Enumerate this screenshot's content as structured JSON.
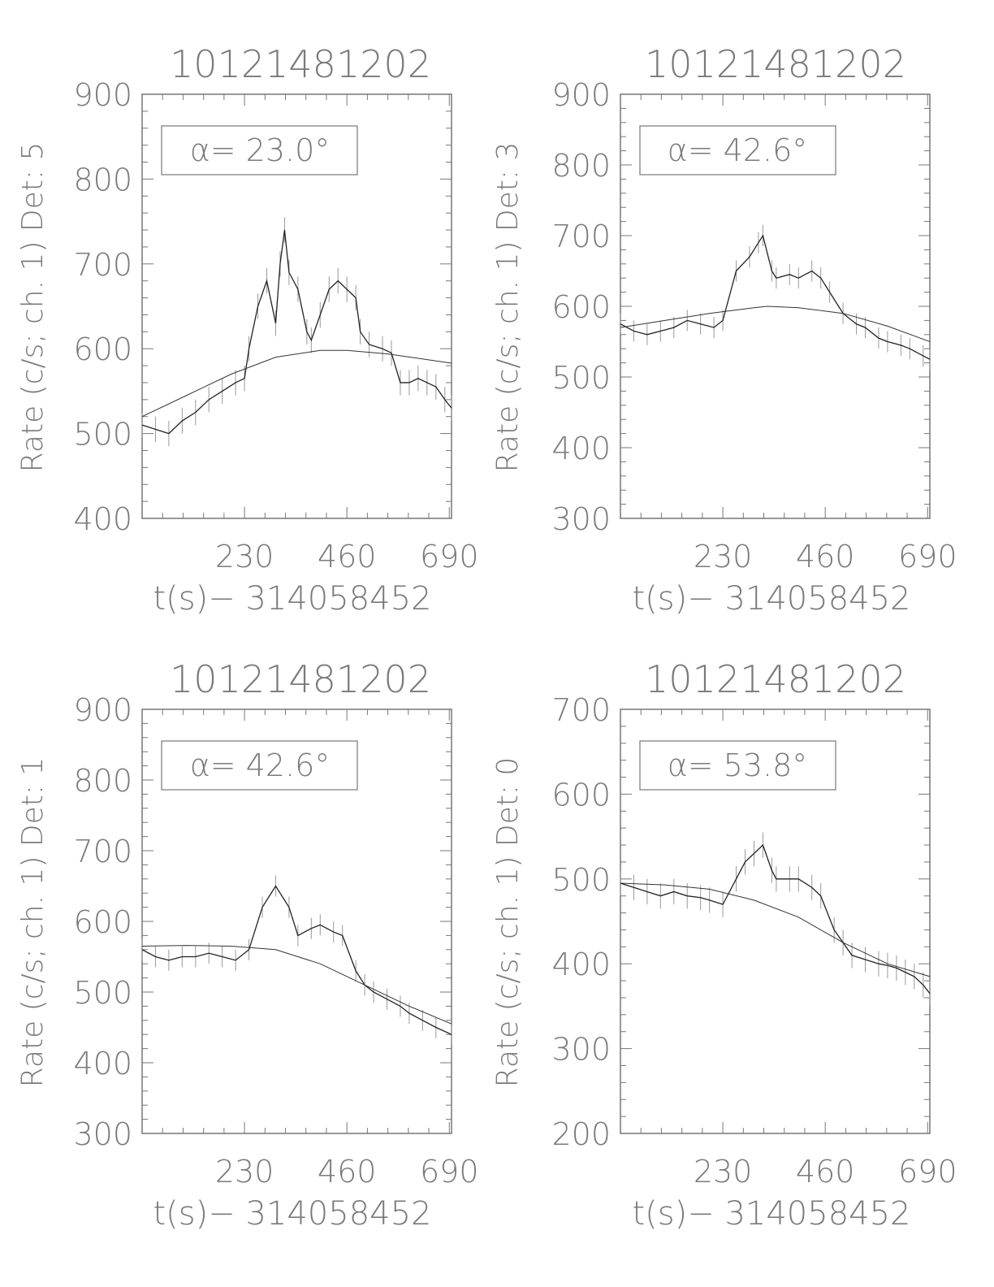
{
  "chart_data": [
    {
      "type": "line",
      "title": "10121481202",
      "ylabel": "Rate (c/s; ch. 1) Det: 5",
      "xlabel": "t(s)− 314058452",
      "annotation": "α= 23.0°",
      "xlim": [
        0,
        695
      ],
      "ylim": [
        400,
        900
      ],
      "xticks": [
        230,
        460,
        690
      ],
      "yticks": [
        400,
        500,
        600,
        700,
        800,
        900
      ],
      "data": {
        "x": [
          0,
          30,
          60,
          90,
          120,
          150,
          180,
          210,
          230,
          240,
          260,
          280,
          300,
          310,
          320,
          330,
          350,
          370,
          380,
          400,
          420,
          440,
          460,
          480,
          490,
          510,
          540,
          560,
          580,
          600,
          620,
          640,
          660,
          680,
          695
        ],
        "y": [
          510,
          505,
          500,
          515,
          525,
          540,
          550,
          560,
          565,
          600,
          650,
          680,
          630,
          700,
          740,
          690,
          670,
          620,
          610,
          640,
          670,
          680,
          670,
          660,
          620,
          605,
          600,
          595,
          560,
          560,
          565,
          560,
          555,
          540,
          530
        ]
      },
      "fit": {
        "x": [
          0,
          100,
          200,
          300,
          400,
          460,
          550,
          695
        ],
        "y": [
          520,
          545,
          570,
          590,
          598,
          598,
          594,
          583
        ]
      }
    },
    {
      "type": "line",
      "title": "10121481202",
      "ylabel": "Rate (c/s; ch. 1) Det: 3",
      "xlabel": "t(s)− 314058452",
      "annotation": "α= 42.6°",
      "xlim": [
        0,
        695
      ],
      "ylim": [
        300,
        900
      ],
      "xticks": [
        230,
        460,
        690
      ],
      "yticks": [
        300,
        400,
        500,
        600,
        700,
        800,
        900
      ],
      "data": {
        "x": [
          0,
          30,
          60,
          90,
          120,
          150,
          180,
          210,
          230,
          260,
          290,
          310,
          320,
          340,
          350,
          380,
          400,
          430,
          450,
          470,
          500,
          530,
          550,
          580,
          600,
          630,
          650,
          680,
          695
        ],
        "y": [
          575,
          565,
          560,
          565,
          570,
          580,
          575,
          570,
          580,
          650,
          670,
          690,
          700,
          650,
          640,
          645,
          640,
          650,
          640,
          620,
          590,
          575,
          570,
          555,
          550,
          545,
          540,
          530,
          525
        ]
      },
      "fit": {
        "x": [
          0,
          100,
          200,
          300,
          330,
          400,
          500,
          600,
          695
        ],
        "y": [
          570,
          580,
          590,
          598,
          600,
          598,
          590,
          572,
          550
        ]
      }
    },
    {
      "type": "line",
      "title": "10121481202",
      "ylabel": "Rate (c/s; ch. 1) Det: 1",
      "xlabel": "t(s)− 314058452",
      "annotation": "α= 42.6°",
      "xlim": [
        0,
        695
      ],
      "ylim": [
        300,
        900
      ],
      "xticks": [
        230,
        460,
        690
      ],
      "yticks": [
        300,
        400,
        500,
        600,
        700,
        800,
        900
      ],
      "data": {
        "x": [
          0,
          30,
          60,
          90,
          120,
          150,
          180,
          210,
          240,
          270,
          300,
          330,
          350,
          380,
          400,
          430,
          450,
          480,
          500,
          520,
          550,
          580,
          600,
          630,
          660,
          695
        ],
        "y": [
          560,
          550,
          545,
          550,
          550,
          555,
          550,
          545,
          560,
          620,
          650,
          620,
          580,
          590,
          595,
          585,
          580,
          530,
          510,
          500,
          490,
          480,
          470,
          460,
          450,
          440
        ]
      },
      "fit": {
        "x": [
          0,
          100,
          200,
          300,
          400,
          500,
          600,
          695
        ],
        "y": [
          565,
          566,
          565,
          560,
          540,
          510,
          480,
          455
        ]
      }
    },
    {
      "type": "line",
      "title": "10121481202",
      "ylabel": "Rate (c/s; ch. 1) Det: 0",
      "xlabel": "t(s)− 314058452",
      "annotation": "α= 53.8°",
      "xlim": [
        0,
        695
      ],
      "ylim": [
        200,
        700
      ],
      "xticks": [
        230,
        460,
        690
      ],
      "yticks": [
        200,
        300,
        400,
        500,
        600,
        700
      ],
      "data": {
        "x": [
          0,
          30,
          60,
          90,
          120,
          150,
          180,
          200,
          230,
          260,
          280,
          300,
          320,
          340,
          350,
          380,
          400,
          430,
          450,
          480,
          500,
          520,
          550,
          580,
          600,
          620,
          640,
          660,
          680,
          695
        ],
        "y": [
          495,
          490,
          485,
          480,
          485,
          480,
          478,
          475,
          470,
          500,
          520,
          530,
          540,
          510,
          500,
          500,
          500,
          490,
          480,
          440,
          425,
          410,
          405,
          400,
          398,
          395,
          390,
          385,
          375,
          365
        ]
      },
      "fit": {
        "x": [
          0,
          100,
          200,
          300,
          400,
          500,
          600,
          695
        ],
        "y": [
          495,
          493,
          488,
          475,
          455,
          425,
          400,
          385
        ]
      }
    }
  ]
}
